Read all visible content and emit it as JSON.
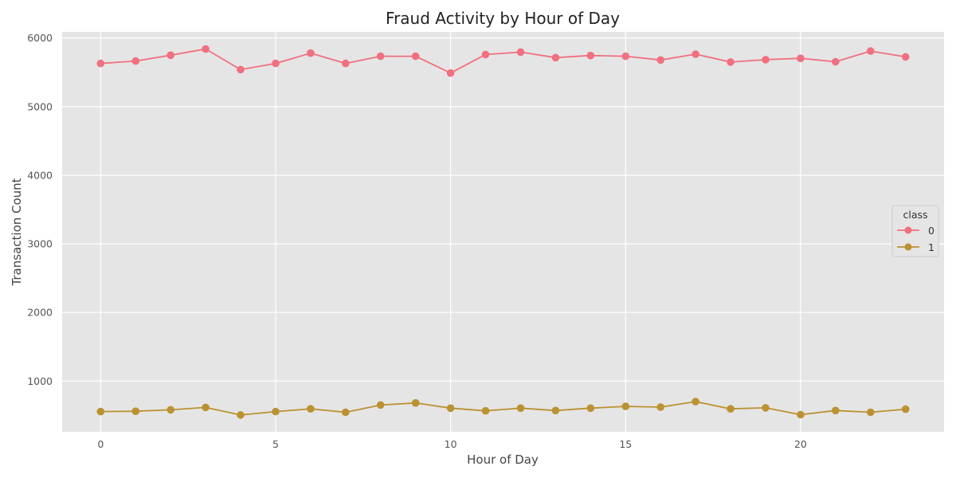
{
  "chart_data": {
    "type": "line",
    "title": "Fraud Activity by Hour of Day",
    "xlabel": "Hour of Day",
    "ylabel": "Transaction Count",
    "xlim": [
      -1.1,
      24.1
    ],
    "ylim": [
      260,
      6090
    ],
    "xticks": [
      0,
      5,
      10,
      15,
      20
    ],
    "yticks": [
      1000,
      2000,
      3000,
      4000,
      5000,
      6000
    ],
    "x": [
      0,
      1,
      2,
      3,
      4,
      5,
      6,
      7,
      8,
      9,
      10,
      11,
      12,
      13,
      14,
      15,
      16,
      17,
      18,
      19,
      20,
      21,
      22,
      23
    ],
    "grid": true,
    "legend": {
      "title": "class",
      "placement": "center-right"
    },
    "series": [
      {
        "name": "0",
        "color": "#f07080",
        "values": [
          5630,
          5665,
          5750,
          5840,
          5540,
          5630,
          5780,
          5630,
          5735,
          5735,
          5490,
          5760,
          5795,
          5715,
          5745,
          5735,
          5680,
          5765,
          5650,
          5685,
          5705,
          5655,
          5810,
          5725
        ]
      },
      {
        "name": "1",
        "color": "#bb9232",
        "values": [
          555,
          560,
          580,
          615,
          505,
          555,
          595,
          545,
          650,
          680,
          605,
          565,
          605,
          570,
          605,
          630,
          620,
          700,
          595,
          610,
          510,
          570,
          545,
          590
        ]
      }
    ]
  }
}
